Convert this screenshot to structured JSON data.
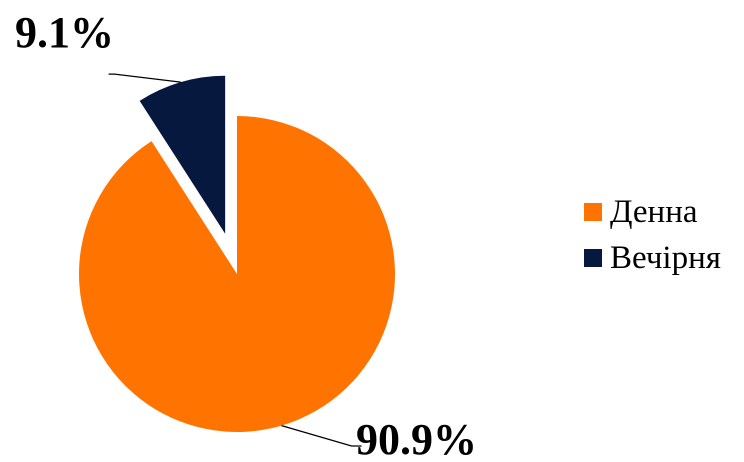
{
  "chart_data": {
    "type": "pie",
    "categories": [
      "Денна",
      "Вечірня"
    ],
    "values": [
      90.9,
      9.1
    ],
    "labels": [
      "90.9%",
      "9.1%"
    ],
    "colors": [
      "#FF7400",
      "#07183F"
    ],
    "exploded": "Вечірня",
    "legend_position": "right",
    "title": ""
  }
}
